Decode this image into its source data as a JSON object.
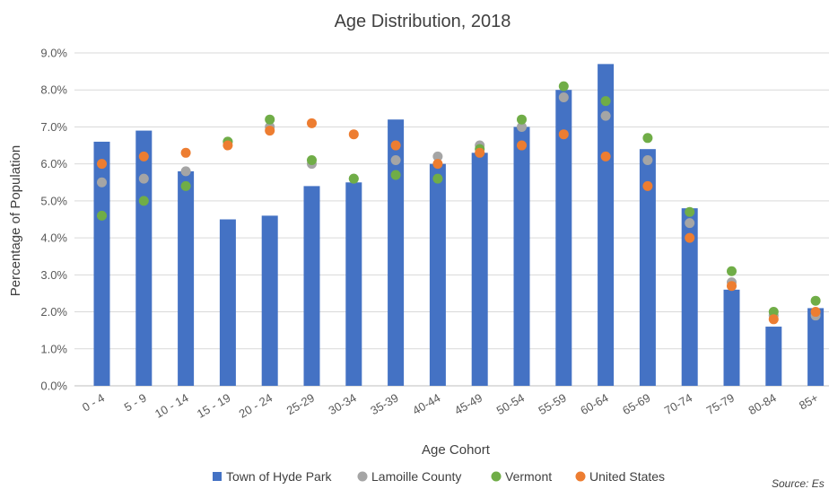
{
  "chart_data": {
    "type": "bar",
    "title": "Age Distribution, 2018",
    "xlabel": "Age Cohort",
    "ylabel": "Percentage of Population",
    "ylim": [
      0,
      9
    ],
    "yticks": [
      "0.0%",
      "1.0%",
      "2.0%",
      "3.0%",
      "4.0%",
      "5.0%",
      "6.0%",
      "7.0%",
      "8.0%",
      "9.0%"
    ],
    "grid": true,
    "legend_position": "bottom",
    "categories": [
      "0 - 4",
      "5 - 9",
      "10 - 14",
      "15 - 19",
      "20 - 24",
      "25-29",
      "30-34",
      "35-39",
      "40-44",
      "45-49",
      "50-54",
      "55-59",
      "60-64",
      "65-69",
      "70-74",
      "75-79",
      "80-84",
      "85+"
    ],
    "series": [
      {
        "name": "Town of Hyde Park",
        "kind": "bar",
        "color": "#4472C4",
        "values": [
          6.6,
          6.9,
          5.8,
          4.5,
          4.6,
          5.4,
          5.5,
          7.2,
          6.0,
          6.3,
          7.0,
          8.0,
          8.7,
          6.4,
          4.8,
          2.6,
          1.6,
          2.1
        ]
      },
      {
        "name": "Lamoille County",
        "kind": "dot",
        "color": "#A5A5A5",
        "values": [
          5.5,
          5.6,
          5.8,
          6.6,
          7.0,
          6.0,
          5.6,
          6.1,
          6.2,
          6.5,
          7.0,
          7.8,
          7.3,
          6.1,
          4.4,
          2.8,
          1.9,
          1.9
        ]
      },
      {
        "name": "Vermont",
        "kind": "dot",
        "color": "#70AD47",
        "values": [
          4.6,
          5.0,
          5.4,
          6.6,
          7.2,
          6.1,
          5.6,
          5.7,
          5.6,
          6.4,
          7.2,
          8.1,
          7.7,
          6.7,
          4.7,
          3.1,
          2.0,
          2.3
        ]
      },
      {
        "name": "United States",
        "kind": "dot",
        "color": "#ED7D31",
        "values": [
          6.0,
          6.2,
          6.3,
          6.5,
          6.9,
          7.1,
          6.8,
          6.5,
          6.0,
          6.3,
          6.5,
          6.8,
          6.2,
          5.4,
          4.0,
          2.7,
          1.8,
          2.0
        ]
      }
    ],
    "source_text": "Source: Es"
  }
}
